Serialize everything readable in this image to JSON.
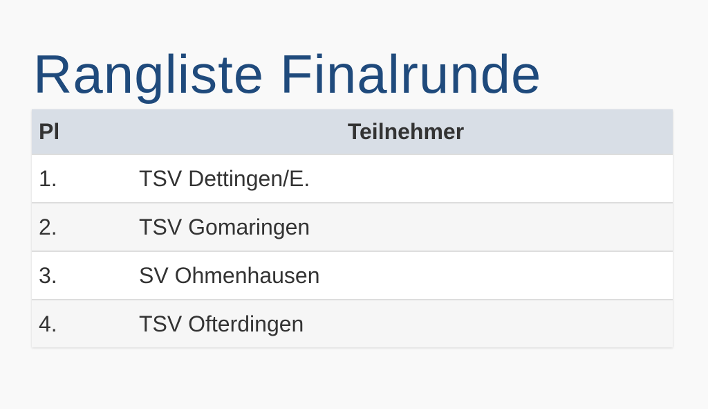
{
  "header": {
    "title": "Rangliste Finalrunde"
  },
  "table": {
    "columns": [
      "Pl",
      "Teilnehmer"
    ],
    "rows": [
      [
        "1.",
        "TSV Dettingen/E."
      ],
      [
        "2.",
        "TSV Gomaringen"
      ],
      [
        "3.",
        "SV Ohmenhausen"
      ],
      [
        "4.",
        "TSV Ofterdingen"
      ]
    ]
  }
}
